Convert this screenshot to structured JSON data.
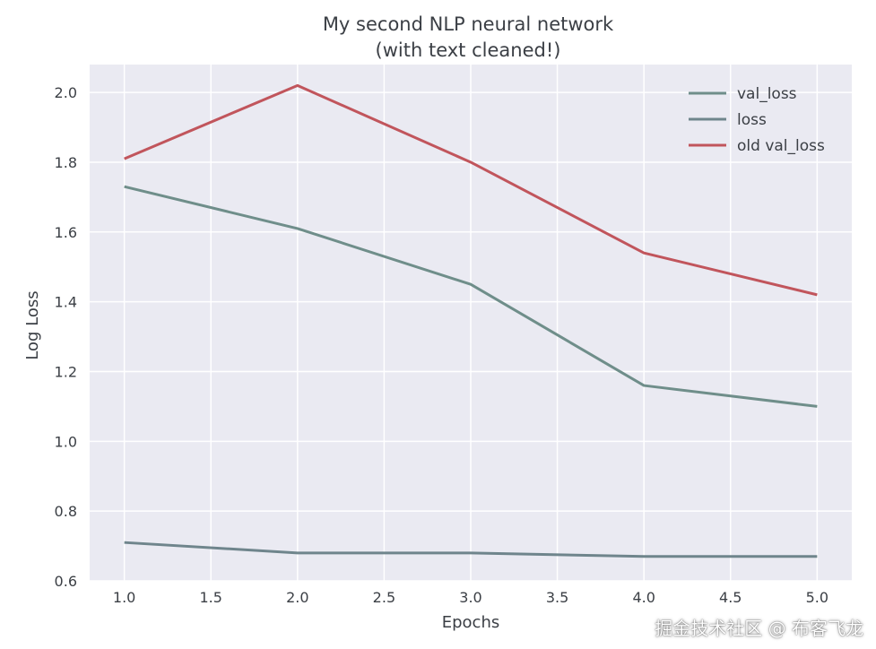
{
  "chart_data": {
    "type": "line",
    "title": [
      "My second NLP neural network",
      "(with text cleaned!)"
    ],
    "xlabel": "Epochs",
    "ylabel": "Log Loss",
    "xlim": [
      0.8,
      5.2
    ],
    "ylim": [
      0.6,
      2.08
    ],
    "xticks": [
      1.0,
      1.5,
      2.0,
      2.5,
      3.0,
      3.5,
      4.0,
      4.5,
      5.0
    ],
    "xtick_labels": [
      "1.0",
      "1.5",
      "2.0",
      "2.5",
      "3.0",
      "3.5",
      "4.0",
      "4.5",
      "5.0"
    ],
    "yticks": [
      0.6,
      0.8,
      1.0,
      1.2,
      1.4,
      1.6,
      1.8,
      2.0
    ],
    "ytick_labels": [
      "0.6",
      "0.8",
      "1.0",
      "1.2",
      "1.4",
      "1.6",
      "1.8",
      "2.0"
    ],
    "grid": true,
    "legend_position": "top-right",
    "x": [
      1,
      2,
      3,
      4,
      5
    ],
    "series": [
      {
        "name": "val_loss",
        "color": "#6f8e8a",
        "values": [
          1.73,
          1.61,
          1.45,
          1.16,
          1.1
        ]
      },
      {
        "name": "loss",
        "color": "#6f858c",
        "values": [
          0.71,
          0.68,
          0.68,
          0.67,
          0.67
        ]
      },
      {
        "name": "old val_loss",
        "color": "#c1555c",
        "values": [
          1.81,
          2.02,
          1.8,
          1.54,
          1.42
        ]
      }
    ],
    "background": "#eaeaf2"
  },
  "watermark": "掘金技术社区 @ 布客飞龙"
}
